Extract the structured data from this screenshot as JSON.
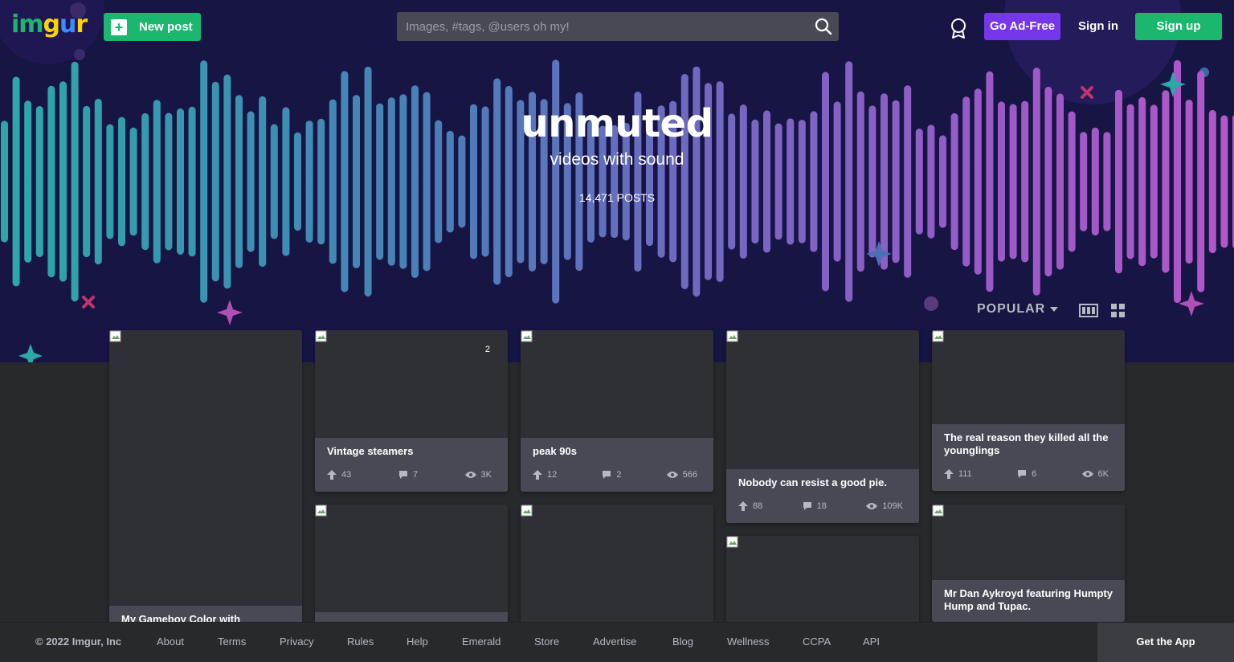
{
  "header": {
    "logo_text": [
      "im",
      "g",
      "u",
      "r"
    ],
    "new_post_label": "New post",
    "search_placeholder": "Images, #tags, @users oh my!",
    "ad_free_label": "Go Ad-Free",
    "sign_in_label": "Sign in",
    "sign_up_label": "Sign up"
  },
  "hero": {
    "title": "unmuted",
    "subtitle": "videos with sound",
    "posts_count": "14,471 POSTS"
  },
  "sort": {
    "label": "POPULAR"
  },
  "cards": [
    {
      "title": "My Gameboy Color with Pokémon"
    },
    {
      "title": "Vintage steamers",
      "badge": "2",
      "upvotes": "43",
      "comments": "7",
      "views": "3K"
    },
    {
      "title": "peak 90s",
      "upvotes": "12",
      "comments": "2",
      "views": "566"
    },
    {
      "title": "Nobody can resist a good pie.",
      "upvotes": "88",
      "comments": "18",
      "views": "109K"
    },
    {
      "title_line1": "The real reason they killed all the",
      "title_line2": "younglings",
      "upvotes": "111",
      "comments": "6",
      "views": "6K"
    },
    {
      "title_line1": "Mr Dan Aykroyd featuring Humpty",
      "title_line2": "Hump and Tupac."
    }
  ],
  "footer": {
    "copyright": "© 2022 Imgur, Inc",
    "links": [
      "About",
      "Terms",
      "Privacy",
      "Rules",
      "Help",
      "Emerald",
      "Store",
      "Advertise",
      "Blog",
      "Wellness",
      "CCPA",
      "API"
    ],
    "get_app_label": "Get the App"
  },
  "colors": {
    "brand_green": "#1bb76e",
    "ad_free_purple": "#7536ec",
    "hero_bg": "#171544",
    "page_bg": "#27292d",
    "wave_start": "#2aa9a8",
    "wave_end": "#b257c9"
  },
  "icons": [
    "plus-icon",
    "search-icon",
    "award-icon",
    "caret-down-icon",
    "grid-large-icon",
    "grid-small-icon",
    "upvote-icon",
    "comment-icon",
    "views-icon",
    "broken-image-icon"
  ]
}
